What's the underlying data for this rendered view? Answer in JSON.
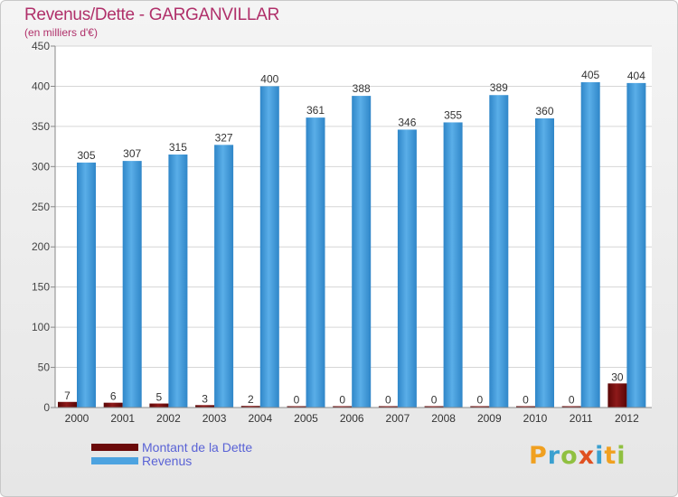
{
  "chart_data": {
    "type": "bar",
    "title": "Revenus/Dette - GARGANVILLAR",
    "subtitle": "(en milliers d'€)",
    "categories": [
      "2000",
      "2001",
      "2002",
      "2003",
      "2004",
      "2005",
      "2006",
      "2007",
      "2008",
      "2009",
      "2010",
      "2011",
      "2012"
    ],
    "series": [
      {
        "name": "Montant de la Dette",
        "color": "#6b0a0a",
        "values": [
          7,
          6,
          5,
          3,
          2,
          0,
          0,
          0,
          0,
          0,
          0,
          0,
          30
        ]
      },
      {
        "name": "Revenus",
        "color": "#4da3e0",
        "values": [
          305,
          307,
          315,
          327,
          400,
          361,
          388,
          346,
          355,
          389,
          360,
          405,
          404
        ]
      }
    ],
    "ylim": [
      0,
      450
    ],
    "yticks": [
      0,
      50,
      100,
      150,
      200,
      250,
      300,
      350,
      400,
      450
    ],
    "grid": true,
    "legend_position": "bottom-left"
  },
  "logo": {
    "letters": [
      "P",
      "r",
      "o",
      "x",
      "i",
      "t",
      "i"
    ],
    "colors": [
      "#f0a020",
      "#3aa0d0",
      "#90c040",
      "#e05020",
      "#3aa0d0",
      "#f0a020",
      "#90c040"
    ]
  }
}
